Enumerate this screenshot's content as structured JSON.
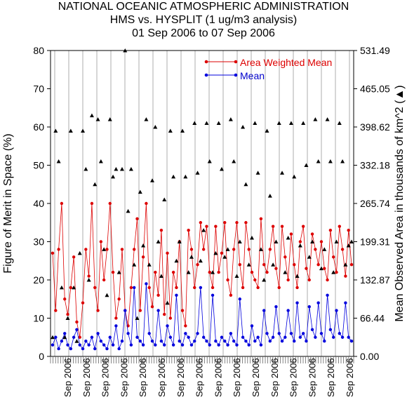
{
  "titles": {
    "line1": "NATIONAL OCEANIC ATMOSPHERIC ADMINISTRATION",
    "line2": "HMS vs. HYSPLIT (1 ug/m3 analysis)",
    "line3": "01 Sep 2006 to 07 Sep 2006"
  },
  "chart_data": {
    "type": "line",
    "ylabel_left": "Figure of Merit in Space (%)",
    "ylabel_right": "Mean Observed Area in thousands of km^2",
    "right_marker_glyph": "(▲)",
    "ylim_left": [
      0,
      80
    ],
    "yticks_left": [
      "0",
      "10",
      "20",
      "30",
      "40",
      "50",
      "60",
      "70",
      "80"
    ],
    "yticks_right": [
      "0.00",
      "66.44",
      "132.87",
      "199.31",
      "265.74",
      "332.18",
      "398.62",
      "465.05",
      "531.49"
    ],
    "x_tick_label": "Sep 2006",
    "x_label_count": 16,
    "colors": {
      "awm": "#dd0000",
      "mean": "#0000dd",
      "area": "#000000",
      "grid": "#999999"
    },
    "series": [
      {
        "name": "Area Weighted Mean",
        "values": [
          27,
          12,
          28,
          40,
          15,
          11,
          18,
          26,
          9,
          5,
          14,
          28,
          21,
          40,
          18,
          12,
          30,
          20,
          28,
          40,
          22,
          10,
          15,
          28,
          12,
          8,
          18,
          28,
          36,
          12,
          26,
          40,
          18,
          13,
          22,
          16,
          33,
          11,
          27,
          10,
          22,
          18,
          30,
          12,
          8,
          33,
          28,
          18,
          24,
          35,
          28,
          34,
          22,
          18,
          34,
          22,
          27,
          35,
          20,
          16,
          28,
          35,
          24,
          18,
          35,
          28,
          22,
          20,
          18,
          36,
          24,
          22,
          28,
          34,
          23,
          18,
          34,
          26,
          20,
          32,
          24,
          18,
          30,
          34,
          23,
          20,
          32,
          28,
          24,
          30,
          23,
          20,
          33,
          26,
          22,
          34,
          28,
          21,
          33,
          24
        ]
      },
      {
        "name": "Mean",
        "values": [
          3,
          5,
          2,
          4,
          6,
          3,
          2,
          5,
          7,
          3,
          2,
          4,
          3,
          5,
          2,
          6,
          4,
          3,
          2,
          5,
          3,
          8,
          2,
          4,
          12,
          6,
          3,
          18,
          5,
          4,
          3,
          19,
          6,
          4,
          3,
          12,
          4,
          3,
          8,
          5,
          3,
          16,
          4,
          3,
          6,
          5,
          3,
          4,
          6,
          18,
          5,
          4,
          3,
          16,
          4,
          3,
          5,
          4,
          3,
          6,
          4,
          3,
          15,
          5,
          4,
          3,
          8,
          4,
          5,
          3,
          12,
          6,
          4,
          5,
          13,
          6,
          4,
          5,
          12,
          6,
          4,
          14,
          5,
          6,
          4,
          13,
          7,
          5,
          14,
          6,
          4,
          16,
          7,
          5,
          12,
          6,
          5,
          14,
          5,
          4
        ]
      },
      {
        "name": "Mean Observed Area",
        "values": [
          5,
          59,
          51,
          18,
          5,
          10,
          59,
          18,
          4,
          27,
          59,
          49,
          20,
          63,
          45,
          62,
          51,
          28,
          16,
          62,
          47,
          49,
          22,
          49,
          80,
          38,
          49,
          24,
          10,
          43,
          29,
          62,
          24,
          46,
          60,
          30,
          21,
          41,
          14,
          59,
          47,
          25,
          30,
          59,
          47,
          22,
          26,
          61,
          48,
          25,
          33,
          61,
          51,
          22,
          27,
          61,
          49,
          26,
          28,
          62,
          51,
          21,
          30,
          60,
          45,
          24,
          31,
          61,
          48,
          28,
          20,
          59,
          42,
          24,
          30,
          61,
          48,
          22,
          31,
          61,
          47,
          21,
          29,
          61,
          50,
          26,
          30,
          62,
          51,
          23,
          28,
          62,
          51,
          22,
          30,
          61,
          51,
          24,
          29,
          30
        ]
      }
    ],
    "grid": true,
    "legend_position": "top-right"
  }
}
